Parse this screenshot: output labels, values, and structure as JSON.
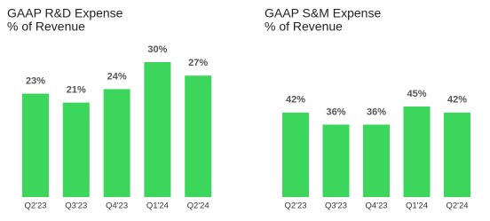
{
  "chart_data": [
    {
      "type": "bar",
      "title": "GAAP R&D Expense",
      "subtitle": "% of Revenue",
      "categories": [
        "Q2'23",
        "Q3'23",
        "Q4'23",
        "Q1'24",
        "Q2'24"
      ],
      "values": [
        23,
        21,
        24,
        30,
        27
      ],
      "value_labels": [
        "23%",
        "21%",
        "24%",
        "30%",
        "27%"
      ],
      "color": "#3dd65c"
    },
    {
      "type": "bar",
      "title": "GAAP S&M Expense",
      "subtitle": "% of Revenue",
      "categories": [
        "Q2'23",
        "Q3'23",
        "Q4'23",
        "Q1'24",
        "Q2'24"
      ],
      "values": [
        42,
        36,
        36,
        45,
        42
      ],
      "value_labels": [
        "42%",
        "36%",
        "36%",
        "45%",
        "42%"
      ],
      "color": "#3dd65c"
    }
  ]
}
